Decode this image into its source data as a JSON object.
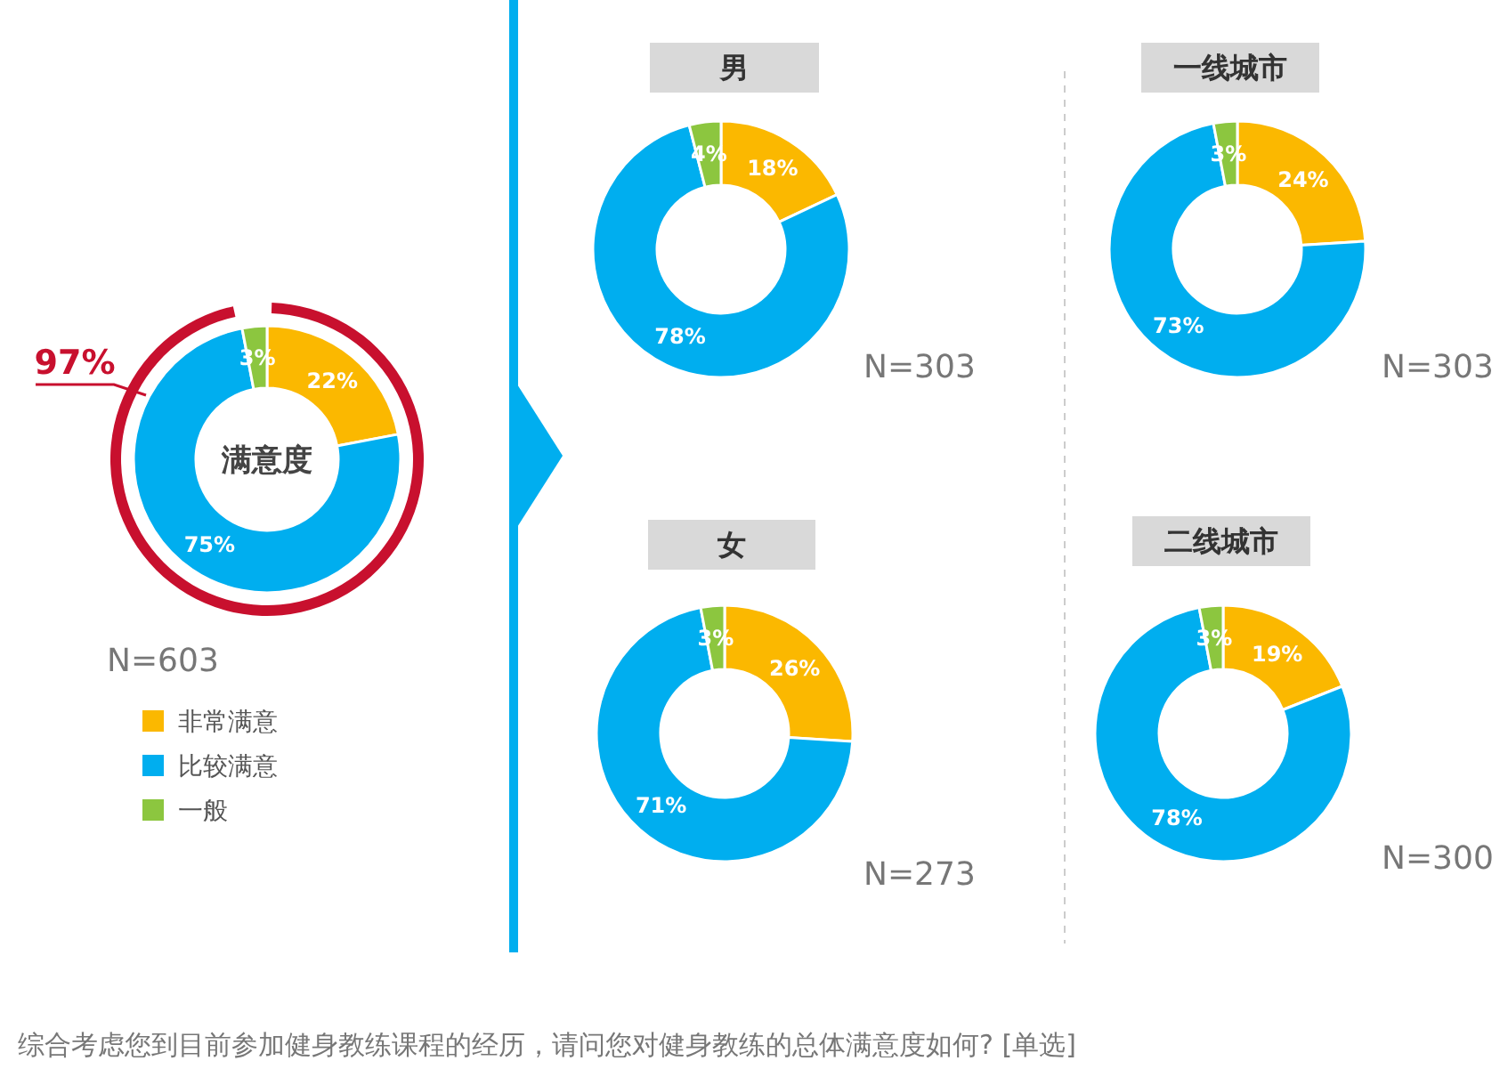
{
  "chart_data": [
    {
      "type": "donut",
      "title": "满意度",
      "categories": [
        "非常满意",
        "比较满意",
        "一般"
      ],
      "values": [
        22,
        75,
        3
      ],
      "value_labels": [
        "22%",
        "75%",
        "3%"
      ],
      "colors": [
        "#fbb800",
        "#00aeef",
        "#8cc63f"
      ],
      "legend": "bottom left",
      "annotations": [
        "97%",
        "N=603",
        "综合考虑您到目前参加健身教练课程的经历，请问您对健身教练的总体满意度如何? [单选]"
      ]
    },
    {
      "type": "donut",
      "title": "男",
      "categories": [
        null,
        null,
        null
      ],
      "values": [
        18,
        78,
        4
      ],
      "value_labels": [
        "18%",
        "78%",
        "4%"
      ],
      "colors": [
        "#fbb800",
        "#00aeef",
        "#8cc63f"
      ],
      "annotations": [
        "N=303"
      ]
    },
    {
      "type": "donut",
      "title": "一线城市",
      "categories": [
        null,
        null,
        null
      ],
      "values": [
        24,
        73,
        3
      ],
      "value_labels": [
        "24%",
        "73%",
        "3%"
      ],
      "colors": [
        "#fbb800",
        "#00aeef",
        "#8cc63f"
      ],
      "annotations": [
        "N=303"
      ]
    },
    {
      "type": "donut",
      "title": "女",
      "categories": [
        null,
        null,
        null
      ],
      "values": [
        26,
        71,
        3
      ],
      "value_labels": [
        "26%",
        "71%",
        "3%"
      ],
      "colors": [
        "#fbb800",
        "#00aeef",
        "#8cc63f"
      ],
      "annotations": [
        "N=273"
      ]
    },
    {
      "type": "donut",
      "title": "二线城市",
      "categories": [
        null,
        null,
        null
      ],
      "values": [
        19,
        78,
        3
      ],
      "value_labels": [
        "19%",
        "78%",
        "3%"
      ],
      "colors": [
        "#fbb800",
        "#00aeef",
        "#8cc63f"
      ],
      "annotations": [
        "N=300"
      ]
    }
  ]
}
